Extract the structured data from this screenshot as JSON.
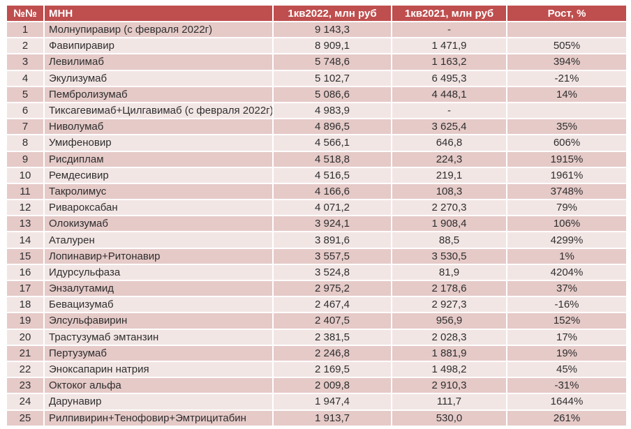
{
  "colors": {
    "header_bg": "#bf4e4e",
    "header_text": "#ffffff",
    "band_dark": "#e5cac8",
    "band_light": "#f2e6e5",
    "body_text": "#2e2e2e"
  },
  "table": {
    "columns": [
      {
        "key": "num",
        "label": "№№"
      },
      {
        "key": "name",
        "label": "МНН"
      },
      {
        "key": "v2022",
        "label": "1кв2022, млн руб"
      },
      {
        "key": "v2021",
        "label": "1кв2021, млн руб"
      },
      {
        "key": "growth",
        "label": "Рост, %"
      }
    ],
    "rows": [
      {
        "num": "1",
        "name": "Молнупиравир (с февраля 2022г)",
        "v2022": "9 143,3",
        "v2021": "-",
        "growth": ""
      },
      {
        "num": "2",
        "name": "Фавипиравир",
        "v2022": "8 909,1",
        "v2021": "1 471,9",
        "growth": "505%"
      },
      {
        "num": "3",
        "name": "Левилимаб",
        "v2022": "5 748,6",
        "v2021": "1 163,2",
        "growth": "394%"
      },
      {
        "num": "4",
        "name": "Экулизумаб",
        "v2022": "5 102,7",
        "v2021": "6 495,3",
        "growth": "-21%"
      },
      {
        "num": "5",
        "name": "Пембролизумаб",
        "v2022": "5 086,6",
        "v2021": "4 448,1",
        "growth": "14%"
      },
      {
        "num": "6",
        "name": "Тиксагевимаб+Цилгавимаб  (с февраля 2022г)",
        "v2022": "4 983,9",
        "v2021": "-",
        "growth": ""
      },
      {
        "num": "7",
        "name": "Ниволумаб",
        "v2022": "4 896,5",
        "v2021": "3 625,4",
        "growth": "35%"
      },
      {
        "num": "8",
        "name": "Умифеновир",
        "v2022": "4 566,1",
        "v2021": "646,8",
        "growth": "606%"
      },
      {
        "num": "9",
        "name": "Рисдиплам",
        "v2022": "4 518,8",
        "v2021": "224,3",
        "growth": "1915%"
      },
      {
        "num": "10",
        "name": "Ремдесивир",
        "v2022": "4 516,5",
        "v2021": "219,1",
        "growth": "1961%"
      },
      {
        "num": "11",
        "name": "Такролимус",
        "v2022": "4 166,6",
        "v2021": "108,3",
        "growth": "3748%"
      },
      {
        "num": "12",
        "name": "Ривароксабан",
        "v2022": "4 071,2",
        "v2021": "2 270,3",
        "growth": "79%"
      },
      {
        "num": "13",
        "name": "Олокизумаб",
        "v2022": "3 924,1",
        "v2021": "1 908,4",
        "growth": "106%"
      },
      {
        "num": "14",
        "name": "Аталурен",
        "v2022": "3 891,6",
        "v2021": "88,5",
        "growth": "4299%"
      },
      {
        "num": "15",
        "name": "Лопинавир+Ритонавир",
        "v2022": "3 557,5",
        "v2021": "3 530,5",
        "growth": "1%"
      },
      {
        "num": "16",
        "name": "Идурсульфаза",
        "v2022": "3 524,8",
        "v2021": "81,9",
        "growth": "4204%"
      },
      {
        "num": "17",
        "name": "Энзалутамид",
        "v2022": "2 975,2",
        "v2021": "2 178,6",
        "growth": "37%"
      },
      {
        "num": "18",
        "name": "Бевацизумаб",
        "v2022": "2 467,4",
        "v2021": "2 927,3",
        "growth": "-16%"
      },
      {
        "num": "19",
        "name": "Элсульфавирин",
        "v2022": "2 407,5",
        "v2021": "956,9",
        "growth": "152%"
      },
      {
        "num": "20",
        "name": "Трастузумаб эмтанзин",
        "v2022": "2 381,5",
        "v2021": "2 028,3",
        "growth": "17%"
      },
      {
        "num": "21",
        "name": "Пертузумаб",
        "v2022": "2 246,8",
        "v2021": "1 881,9",
        "growth": "19%"
      },
      {
        "num": "22",
        "name": "Эноксапарин натрия",
        "v2022": "2 169,5",
        "v2021": "1 498,2",
        "growth": "45%"
      },
      {
        "num": "23",
        "name": "Октоког альфа",
        "v2022": "2 009,8",
        "v2021": "2 910,3",
        "growth": "-31%"
      },
      {
        "num": "24",
        "name": "Дарунавир",
        "v2022": "1 947,4",
        "v2021": "111,7",
        "growth": "1644%"
      },
      {
        "num": "25",
        "name": "Рилпивирин+Тенофовир+Эмтрицитабин",
        "v2022": "1 913,7",
        "v2021": "530,0",
        "growth": "261%"
      }
    ]
  }
}
